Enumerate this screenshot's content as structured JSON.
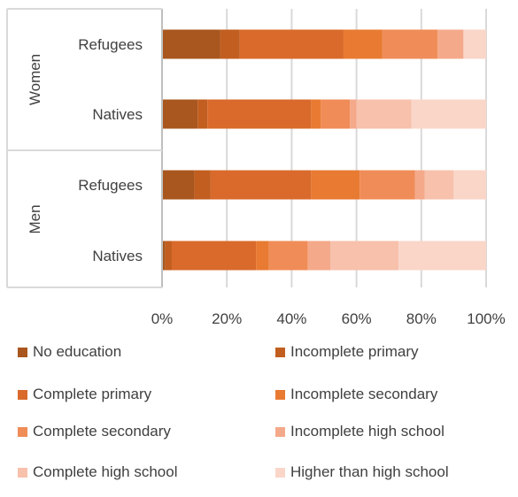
{
  "chart_data": {
    "type": "bar",
    "orientation": "horizontal",
    "stacked": "percent",
    "groups": [
      {
        "name": "Women",
        "rows": [
          "Refugees",
          "Natives"
        ]
      },
      {
        "name": "Men",
        "rows": [
          "Refugees",
          "Natives"
        ]
      }
    ],
    "xlim": [
      0,
      100
    ],
    "x_ticks": [
      "0%",
      "20%",
      "40%",
      "60%",
      "80%",
      "100%"
    ],
    "grid": true,
    "legend_position": "bottom",
    "series": [
      {
        "name": "No education",
        "color": "#A9571E",
        "values": [
          18,
          11,
          10,
          1
        ]
      },
      {
        "name": "Incomplete primary",
        "color": "#C25E1F",
        "values": [
          6,
          3,
          5,
          2
        ]
      },
      {
        "name": "Complete primary",
        "color": "#D96A2B",
        "values": [
          32,
          32,
          31,
          26
        ]
      },
      {
        "name": "Incomplete secondary",
        "color": "#E87A32",
        "values": [
          12,
          3,
          15,
          4
        ]
      },
      {
        "name": "Complete secondary",
        "color": "#F08C57",
        "values": [
          17,
          9,
          17,
          12
        ]
      },
      {
        "name": "Incomplete high school",
        "color": "#F4A98A",
        "values": [
          8,
          2,
          3,
          7
        ]
      },
      {
        "name": "Complete high school",
        "color": "#F7C1AC",
        "values": [
          0,
          17,
          9,
          21
        ]
      },
      {
        "name": "Higher than high school",
        "color": "#FAD6C8",
        "values": [
          7,
          23,
          10,
          27
        ]
      }
    ]
  }
}
